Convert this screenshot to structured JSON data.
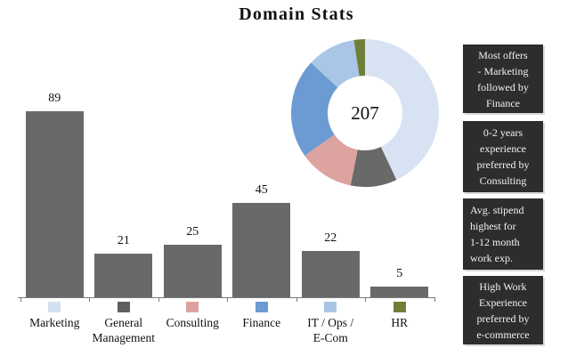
{
  "title": "Domain Stats",
  "chart_data": [
    {
      "type": "bar",
      "title": "Domain Stats",
      "categories": [
        "Marketing",
        "General Management",
        "Consulting",
        "Finance",
        "IT / Ops / E-Com",
        "HR"
      ],
      "display_labels": [
        "Marketing",
        "General\nManagement",
        "Consulting",
        "Finance",
        "IT / Ops /\nE-Com",
        "HR"
      ],
      "values": [
        89,
        21,
        25,
        45,
        22,
        5
      ],
      "bar_color": "#696969",
      "value_labels_shown": true,
      "xlabel": "",
      "ylabel": "",
      "ylim": [
        0,
        95
      ],
      "grid": false,
      "legend_position": "below-x-axis",
      "legend_colors": [
        "#d3e0f1",
        "#5f5f5f",
        "#dca3a1",
        "#6b9bd2",
        "#a9c6e6",
        "#6f7f3a"
      ]
    },
    {
      "type": "pie",
      "subtype": "donut",
      "categories": [
        "Marketing",
        "General Management",
        "Consulting",
        "Finance",
        "IT / Ops / E-Com",
        "HR"
      ],
      "values": [
        89,
        21,
        25,
        45,
        22,
        5
      ],
      "total": 207,
      "center_label": "207",
      "colors": [
        "#d7e3f2",
        "#696969",
        "#dca3a1",
        "#6b9bd2",
        "#a9c6e6",
        "#6f7f3a"
      ],
      "start_angle_deg": 0,
      "direction": "clockwise",
      "legend_position": "none"
    }
  ],
  "notes": [
    {
      "text": "Most offers\n- Marketing\nfollowed by\nFinance",
      "align": "center"
    },
    {
      "text": "0-2 years\nexperience\npreferred by\nConsulting",
      "align": "center"
    },
    {
      "text": "Avg. stipend\nhighest for\n1-12 month\nwork exp.",
      "align": "left"
    },
    {
      "text": "High Work\nExperience\npreferred by\ne-commerce",
      "align": "center"
    }
  ],
  "colors": {
    "background": "#ffffff",
    "bar": "#696969",
    "axis": "#7a7a7a",
    "note_background": "#2d2d2d",
    "note_text": "#f2f2f2"
  }
}
